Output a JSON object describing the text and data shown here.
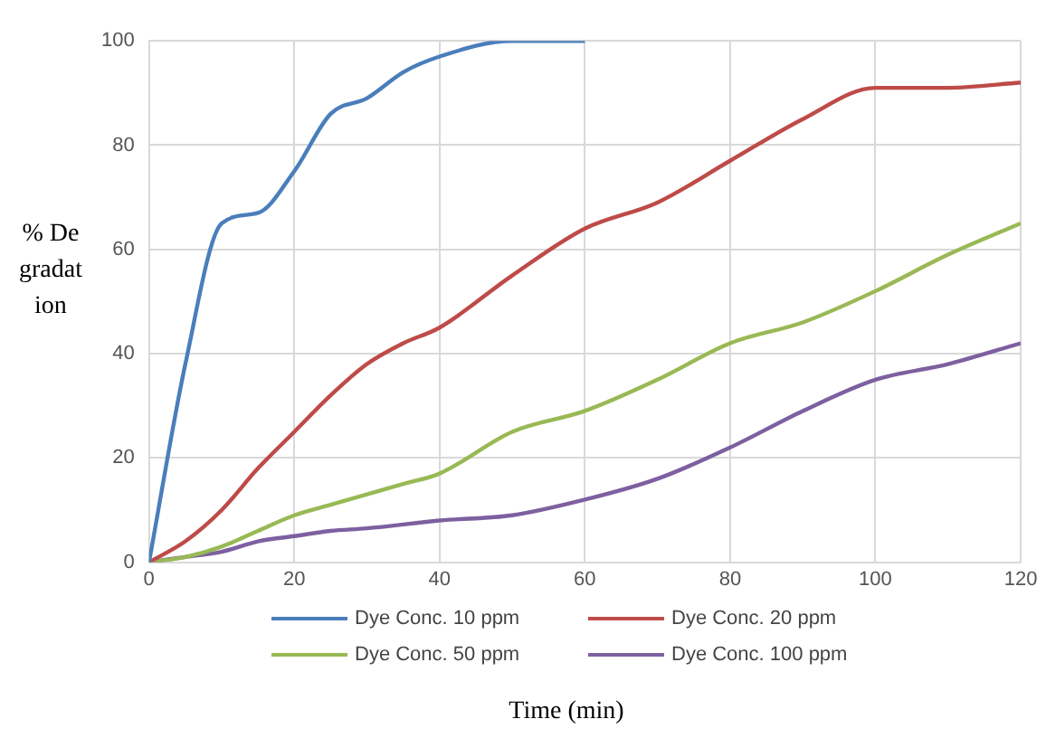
{
  "chart_data": {
    "type": "line",
    "xlabel": "Time (min)",
    "ylabel": "% Degradation",
    "xlim": [
      0,
      120
    ],
    "xticks": [
      0,
      20,
      40,
      60,
      80,
      100,
      120
    ],
    "ylim": [
      0,
      100
    ],
    "yticks": [
      0,
      20,
      40,
      60,
      80,
      100
    ],
    "grid": true,
    "legend": "bottom",
    "marker": "none",
    "line_style": "solid",
    "series": [
      {
        "name": "Dye Conc. 10 ppm",
        "color": "#4a7ebb",
        "x": [
          0,
          5,
          10,
          15,
          20,
          25,
          30,
          35,
          40,
          50,
          60
        ],
        "values": [
          0,
          38,
          65,
          67,
          75,
          86,
          89,
          94,
          97,
          100,
          100
        ]
      },
      {
        "name": "Dye Conc. 20 ppm",
        "color": "#be4b48",
        "x": [
          0,
          5,
          10,
          15,
          20,
          25,
          30,
          35,
          40,
          50,
          60,
          70,
          80,
          90,
          100,
          110,
          120
        ],
        "values": [
          0,
          4,
          10,
          18,
          25,
          32,
          38,
          42,
          45,
          55,
          64,
          69,
          77,
          85,
          91,
          91,
          92
        ]
      },
      {
        "name": "Dye Conc. 50 ppm",
        "color": "#98b954",
        "x": [
          0,
          5,
          10,
          15,
          20,
          25,
          30,
          35,
          40,
          50,
          60,
          70,
          80,
          90,
          100,
          110,
          120
        ],
        "values": [
          0,
          1,
          3,
          6,
          9,
          11,
          13,
          15,
          17,
          25,
          29,
          35,
          42,
          46,
          52,
          59,
          65
        ]
      },
      {
        "name": "Dye Conc. 100 ppm",
        "color": "#7d60a0",
        "x": [
          0,
          5,
          10,
          15,
          20,
          25,
          30,
          40,
          50,
          60,
          70,
          80,
          90,
          100,
          110,
          120
        ],
        "values": [
          0,
          1,
          2,
          4,
          5,
          6,
          6.5,
          8,
          9,
          12,
          16,
          22,
          29,
          35,
          38,
          42
        ]
      }
    ]
  }
}
